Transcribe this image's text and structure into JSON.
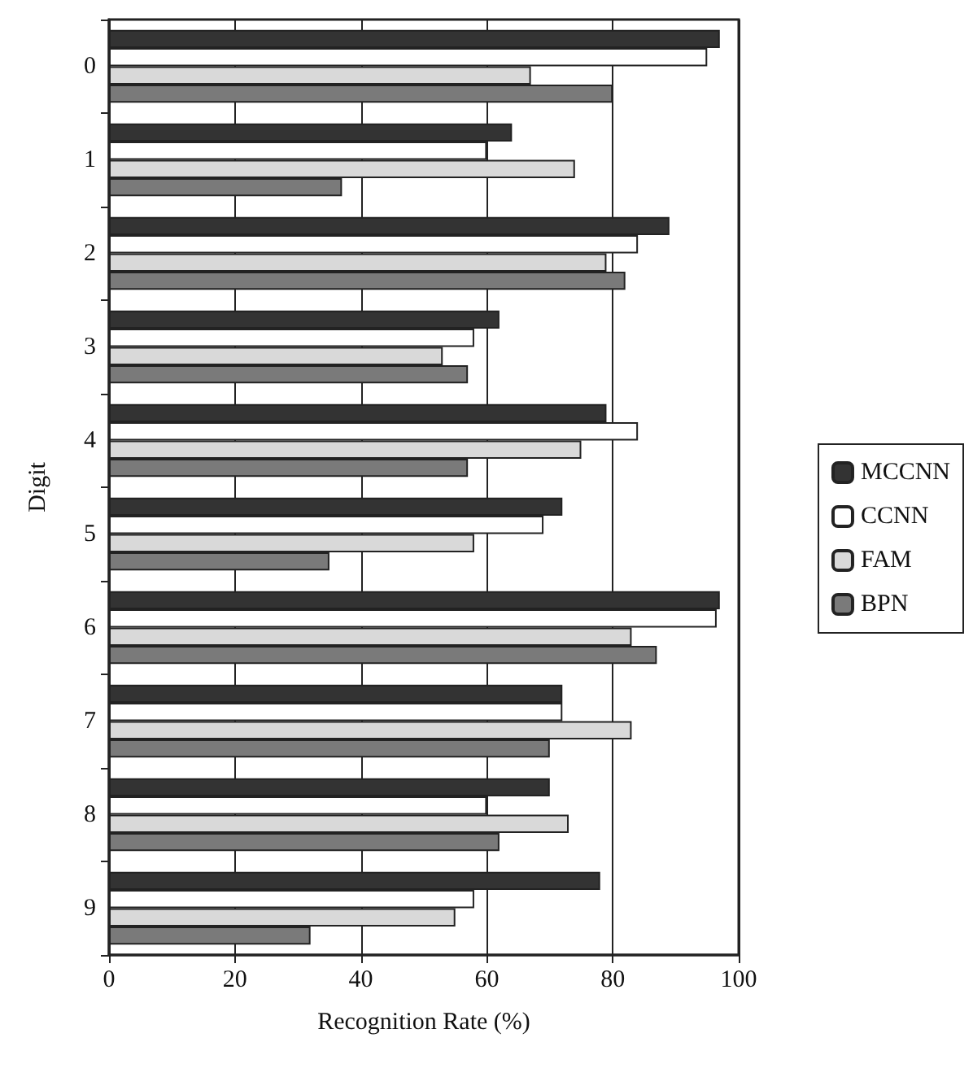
{
  "chart_data": {
    "type": "bar",
    "orientation": "horizontal",
    "xlabel": "Recognition Rate (%)",
    "ylabel": "Digit",
    "categories": [
      "0",
      "1",
      "2",
      "3",
      "4",
      "5",
      "6",
      "7",
      "8",
      "9"
    ],
    "series": [
      {
        "name": "MCCNN",
        "color": "#333333",
        "values": [
          97,
          64,
          89,
          62,
          79,
          72,
          97,
          72,
          70,
          78
        ]
      },
      {
        "name": "CCNN",
        "color": "#ffffff",
        "values": [
          95,
          60,
          84,
          58,
          84,
          69,
          96.5,
          72,
          60,
          58
        ]
      },
      {
        "name": "FAM",
        "color": "#d9d9d9",
        "values": [
          67,
          74,
          79,
          53,
          75,
          58,
          83,
          83,
          73,
          55
        ]
      },
      {
        "name": "BPN",
        "color": "#7a7a7a",
        "values": [
          80,
          37,
          82,
          57,
          57,
          35,
          87,
          70,
          62,
          32
        ]
      }
    ],
    "xlim": [
      0,
      100
    ],
    "xticks": [
      0,
      20,
      40,
      60,
      80,
      100
    ],
    "grid": "x",
    "legend": "right"
  }
}
